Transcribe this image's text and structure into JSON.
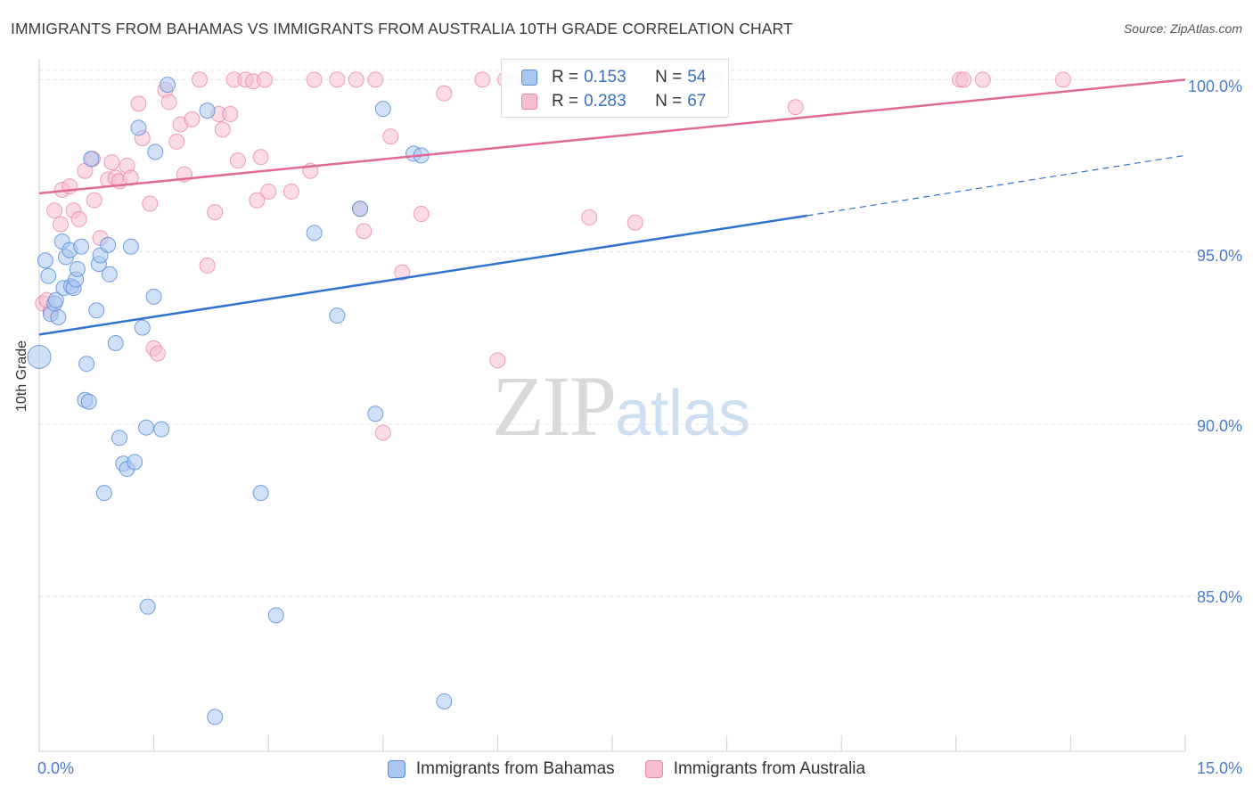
{
  "header": {
    "title": "IMMIGRANTS FROM BAHAMAS VS IMMIGRANTS FROM AUSTRALIA 10TH GRADE CORRELATION CHART",
    "source": "Source: ZipAtlas.com"
  },
  "watermark": {
    "zip": "ZIP",
    "atlas": "atlas"
  },
  "legend": {
    "rows": [
      {
        "r_label": "R =",
        "r_value": "0.153",
        "n_label": "N =",
        "n_value": "54"
      },
      {
        "r_label": "R =",
        "r_value": "0.283",
        "n_label": "N =",
        "n_value": "67"
      }
    ]
  },
  "bottom_legend": {
    "bahamas": "Immigrants from Bahamas",
    "australia": "Immigrants from Australia"
  },
  "colors": {
    "bahamas_fill": "#a9c6f0",
    "bahamas_stroke": "#5b8fd6",
    "bahamas_line": "#2f73d0",
    "australia_fill": "#f7bdd0",
    "australia_stroke": "#e889a8",
    "australia_line": "#e06a93",
    "tick_text": "#4a7cc9"
  },
  "chart_data": {
    "type": "scatter",
    "title": "IMMIGRANTS FROM BAHAMAS VS IMMIGRANTS FROM AUSTRALIA 10TH GRADE CORRELATION CHART",
    "xlabel": "",
    "ylabel": "10th Grade",
    "xlim": [
      0,
      15
    ],
    "ylim": [
      80.5,
      100.5
    ],
    "x_tick_labels": [
      "0.0%",
      "15.0%"
    ],
    "y_ticks": [
      85,
      90,
      95,
      100
    ],
    "y_tick_labels": [
      "85.0%",
      "90.0%",
      "95.0%",
      "100.0%"
    ],
    "grid": true,
    "legend_position": "top-center",
    "series": [
      {
        "name": "Immigrants from Bahamas",
        "r": 0.153,
        "n": 54,
        "trend": {
          "x0": 0,
          "y0": 92.6,
          "x1": 10.05,
          "y1": 96.05,
          "dashed_to_x": 15,
          "dashed_to_y": 97.8
        },
        "points": [
          [
            0.0,
            91.95
          ],
          [
            0.08,
            94.75
          ],
          [
            0.12,
            94.3
          ],
          [
            0.15,
            93.2
          ],
          [
            0.2,
            93.5
          ],
          [
            0.22,
            93.6
          ],
          [
            0.25,
            93.1
          ],
          [
            0.3,
            95.3
          ],
          [
            0.32,
            93.95
          ],
          [
            0.35,
            94.85
          ],
          [
            0.4,
            95.05
          ],
          [
            0.42,
            94.0
          ],
          [
            0.45,
            93.95
          ],
          [
            0.48,
            94.2
          ],
          [
            0.5,
            94.5
          ],
          [
            0.55,
            95.15
          ],
          [
            0.6,
            90.7
          ],
          [
            0.62,
            91.75
          ],
          [
            0.65,
            90.65
          ],
          [
            0.68,
            97.7
          ],
          [
            0.75,
            93.3
          ],
          [
            0.78,
            94.65
          ],
          [
            0.8,
            94.9
          ],
          [
            0.85,
            88.0
          ],
          [
            0.9,
            95.2
          ],
          [
            0.92,
            94.35
          ],
          [
            1.0,
            92.35
          ],
          [
            1.05,
            89.6
          ],
          [
            1.1,
            88.85
          ],
          [
            1.15,
            88.7
          ],
          [
            1.2,
            95.15
          ],
          [
            1.25,
            88.9
          ],
          [
            1.3,
            98.6
          ],
          [
            1.35,
            92.8
          ],
          [
            1.4,
            89.9
          ],
          [
            1.42,
            84.7
          ],
          [
            1.5,
            93.7
          ],
          [
            1.52,
            97.9
          ],
          [
            1.6,
            89.85
          ],
          [
            1.68,
            99.85
          ],
          [
            2.2,
            99.1
          ],
          [
            2.3,
            81.5
          ],
          [
            2.9,
            88.0
          ],
          [
            3.1,
            84.45
          ],
          [
            3.6,
            95.55
          ],
          [
            3.9,
            93.15
          ],
          [
            4.2,
            96.25
          ],
          [
            4.4,
            90.3
          ],
          [
            4.5,
            99.15
          ],
          [
            4.9,
            97.85
          ],
          [
            5.0,
            97.8
          ],
          [
            5.3,
            81.95
          ],
          [
            6.2,
            99.9
          ],
          [
            8.85,
            100.0
          ]
        ]
      },
      {
        "name": "Immigrants from Australia",
        "r": 0.283,
        "n": 67,
        "trend": {
          "x0": 0,
          "y0": 96.7,
          "x1": 15,
          "y1": 100.0
        },
        "points": [
          [
            0.05,
            93.5
          ],
          [
            0.15,
            93.3
          ],
          [
            0.2,
            96.2
          ],
          [
            0.28,
            95.8
          ],
          [
            0.3,
            96.8
          ],
          [
            0.4,
            96.9
          ],
          [
            0.45,
            96.2
          ],
          [
            0.52,
            95.95
          ],
          [
            0.6,
            97.35
          ],
          [
            0.7,
            97.7
          ],
          [
            0.72,
            96.5
          ],
          [
            0.8,
            95.4
          ],
          [
            0.9,
            97.1
          ],
          [
            0.95,
            97.6
          ],
          [
            1.0,
            97.15
          ],
          [
            1.05,
            97.05
          ],
          [
            1.15,
            97.5
          ],
          [
            1.2,
            97.15
          ],
          [
            1.3,
            99.3
          ],
          [
            1.35,
            98.3
          ],
          [
            1.45,
            96.4
          ],
          [
            1.5,
            92.2
          ],
          [
            1.55,
            92.05
          ],
          [
            1.65,
            99.7
          ],
          [
            1.7,
            99.35
          ],
          [
            1.8,
            98.2
          ],
          [
            1.85,
            98.7
          ],
          [
            1.9,
            97.25
          ],
          [
            2.0,
            98.85
          ],
          [
            2.1,
            100.0
          ],
          [
            2.2,
            94.6
          ],
          [
            2.3,
            96.15
          ],
          [
            2.35,
            99.0
          ],
          [
            2.4,
            98.55
          ],
          [
            2.5,
            99.0
          ],
          [
            2.55,
            100.0
          ],
          [
            2.6,
            97.65
          ],
          [
            2.7,
            100.0
          ],
          [
            2.8,
            99.95
          ],
          [
            2.85,
            96.5
          ],
          [
            2.9,
            97.75
          ],
          [
            2.95,
            100.0
          ],
          [
            3.0,
            96.75
          ],
          [
            3.3,
            96.75
          ],
          [
            3.55,
            97.35
          ],
          [
            3.6,
            100.0
          ],
          [
            3.9,
            100.0
          ],
          [
            4.15,
            100.0
          ],
          [
            4.2,
            96.25
          ],
          [
            4.25,
            95.6
          ],
          [
            4.4,
            100.0
          ],
          [
            4.5,
            89.75
          ],
          [
            4.6,
            98.35
          ],
          [
            4.75,
            94.4
          ],
          [
            5.0,
            96.1
          ],
          [
            5.3,
            99.6
          ],
          [
            5.8,
            100.0
          ],
          [
            6.0,
            91.85
          ],
          [
            6.1,
            100.0
          ],
          [
            7.2,
            96.0
          ],
          [
            7.8,
            95.85
          ],
          [
            9.9,
            99.2
          ],
          [
            12.05,
            100.0
          ],
          [
            12.1,
            100.0
          ],
          [
            12.35,
            100.0
          ],
          [
            13.4,
            100.0
          ],
          [
            0.1,
            93.6
          ]
        ]
      }
    ]
  }
}
